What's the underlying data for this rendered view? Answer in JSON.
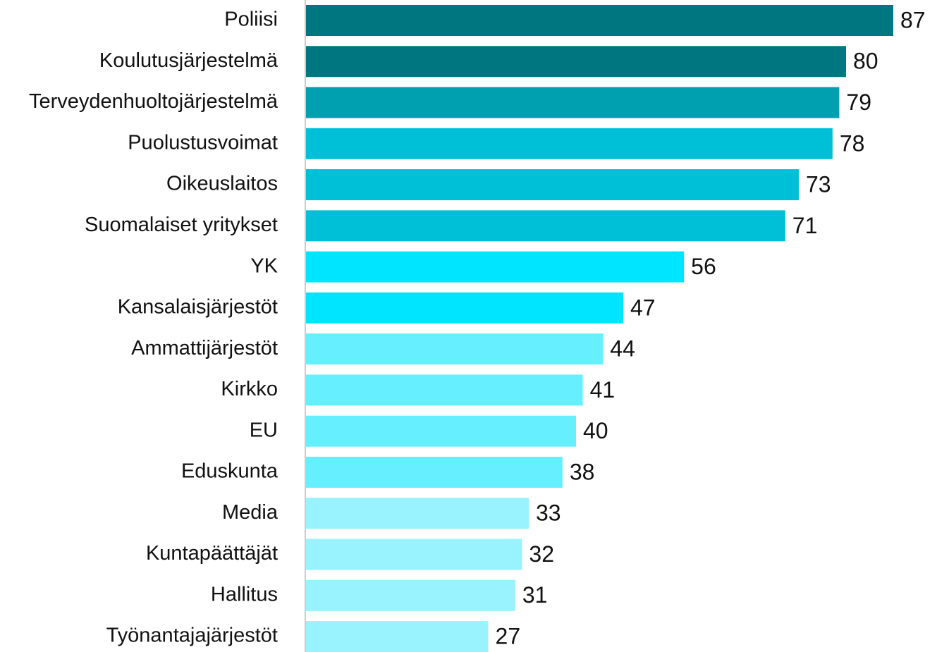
{
  "chart_data": {
    "type": "barh",
    "categories": [
      "Poliisi",
      "Koulutusjärjestelmä",
      "Terveydenhuoltojärjestelmä",
      "Puolustusvoimat",
      "Oikeuslaitos",
      "Suomalaiset yritykset",
      "YK",
      "Kansalaisjärjestöt",
      "Ammattijärjestöt",
      "Kirkko",
      "EU",
      "Eduskunta",
      "Media",
      "Kuntapäättäjät",
      "Hallitus",
      "Työnantajajärjestöt"
    ],
    "values": [
      87,
      80,
      79,
      78,
      73,
      71,
      56,
      47,
      44,
      41,
      40,
      38,
      33,
      32,
      31,
      27
    ],
    "colors": [
      "#007780",
      "#007780",
      "#00a0b0",
      "#00c0d8",
      "#00c0d8",
      "#00c0d8",
      "#00e5ff",
      "#00e5ff",
      "#66f0ff",
      "#66f0ff",
      "#66f0ff",
      "#66f0ff",
      "#99f3ff",
      "#99f3ff",
      "#99f3ff",
      "#99f3ff"
    ]
  }
}
